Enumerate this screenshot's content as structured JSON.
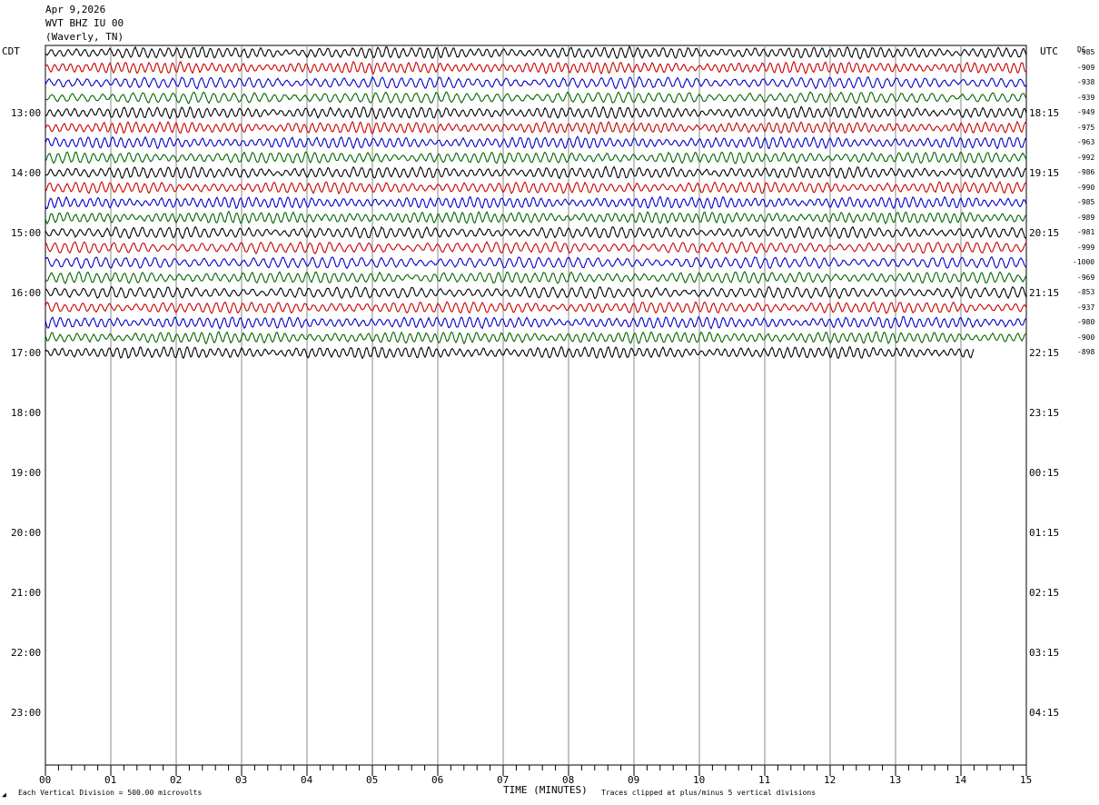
{
  "header": {
    "date": "Apr 9,2026",
    "station": "WVT BHZ IU 00",
    "location": "(Waverly, TN)"
  },
  "left_axis_label": "CDT",
  "right_axis_label": "UTC",
  "dc_label": "DC",
  "footer": {
    "scale_note": "Each Vertical Division =  500.00 microvolts",
    "xlabel": "TIME (MINUTES)",
    "clip_note": "Traces clipped at plus/minus 5 vertical divisions"
  },
  "colors": {
    "trace_cycle": [
      "#000000",
      "#cc0000",
      "#0000cc",
      "#006600"
    ],
    "grid": "#888888"
  },
  "chart_data": {
    "type": "line",
    "title": "",
    "xlabel": "TIME (MINUTES)",
    "xlim": [
      0,
      15
    ],
    "x_ticks": [
      "00",
      "01",
      "02",
      "03",
      "04",
      "05",
      "06",
      "07",
      "08",
      "09",
      "10",
      "11",
      "12",
      "13",
      "14",
      "15"
    ],
    "left_time_labels": [
      "13:00",
      "14:00",
      "15:00",
      "16:00",
      "17:00",
      "18:00",
      "19:00",
      "20:00",
      "21:00",
      "22:00",
      "23:00"
    ],
    "right_time_labels": [
      "18:15",
      "19:15",
      "20:15",
      "21:15",
      "22:15",
      "23:15",
      "00:15",
      "01:15",
      "02:15",
      "03:15",
      "04:15"
    ],
    "dc_offsets": [
      "-985",
      "-909",
      "-938",
      "-939",
      "-949",
      "-975",
      "-963",
      "-992",
      "-986",
      "-990",
      "-985",
      "-989",
      "-981",
      "-999",
      "-1000",
      "-969",
      "-853",
      "-937",
      "-980",
      "-900",
      "-898"
    ],
    "traces_recorded": 21,
    "last_trace_end_minute": 14.2,
    "clip_divisions": 5
  }
}
